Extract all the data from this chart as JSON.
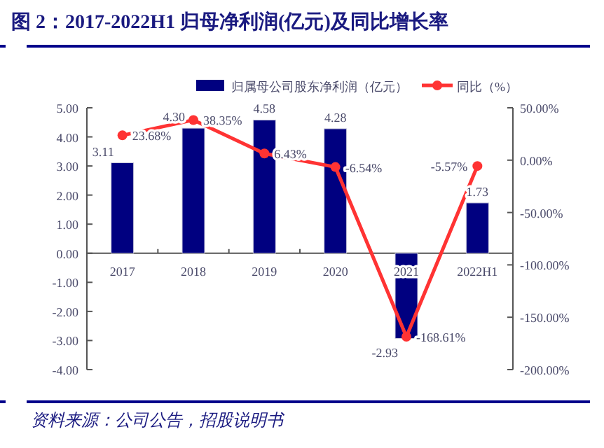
{
  "chart_data": {
    "type": "bar",
    "title": "图 2：2017-2022H1 归母净利润(亿元)及同比增长率",
    "categories": [
      "2017",
      "2018",
      "2019",
      "2020",
      "2021",
      "2022H1"
    ],
    "series": [
      {
        "name": "归属母公司股东净利润（亿元）",
        "color": "#000080",
        "values": [
          3.11,
          4.3,
          4.58,
          4.28,
          -2.93,
          1.73
        ],
        "value_labels": [
          "3.11",
          "4.30",
          "4.58",
          "4.28",
          "-2.93",
          "1.73"
        ]
      },
      {
        "name": "同比（%）",
        "type": "line",
        "axis": "y2",
        "color": "#ff3333",
        "marker": "circle",
        "values": [
          23.68,
          38.35,
          6.43,
          -6.54,
          -168.61,
          -5.57
        ],
        "value_labels": [
          "23.68%",
          "38.35%",
          "6.43%",
          "-6.54%",
          "-168.61%",
          "-5.57%"
        ]
      }
    ],
    "ylim": [
      -4,
      5
    ],
    "yticks": [
      {
        "value": 5,
        "label": "5.00"
      },
      {
        "value": 4,
        "label": "4.00"
      },
      {
        "value": 3,
        "label": "3.00"
      },
      {
        "value": 2,
        "label": "2.00"
      },
      {
        "value": 1,
        "label": "1.00"
      },
      {
        "value": 0,
        "label": "0.00"
      },
      {
        "value": -1,
        "label": "-1.00"
      },
      {
        "value": -2,
        "label": "-2.00"
      },
      {
        "value": -3,
        "label": "-3.00"
      },
      {
        "value": -4,
        "label": "-4.00"
      }
    ],
    "y2lim": [
      -200,
      50
    ],
    "y2ticks": [
      {
        "value": 50,
        "label": "50.00%"
      },
      {
        "value": 0,
        "label": "0.00%"
      },
      {
        "value": -50,
        "label": "-50.00%"
      },
      {
        "value": -100,
        "label": "-100.00%"
      },
      {
        "value": -150,
        "label": "-150.00%"
      },
      {
        "value": -200,
        "label": "-200.00%"
      }
    ],
    "legend": "top",
    "grid": false,
    "annotations": [
      "资料来源：公司公告，招股说明书"
    ]
  }
}
